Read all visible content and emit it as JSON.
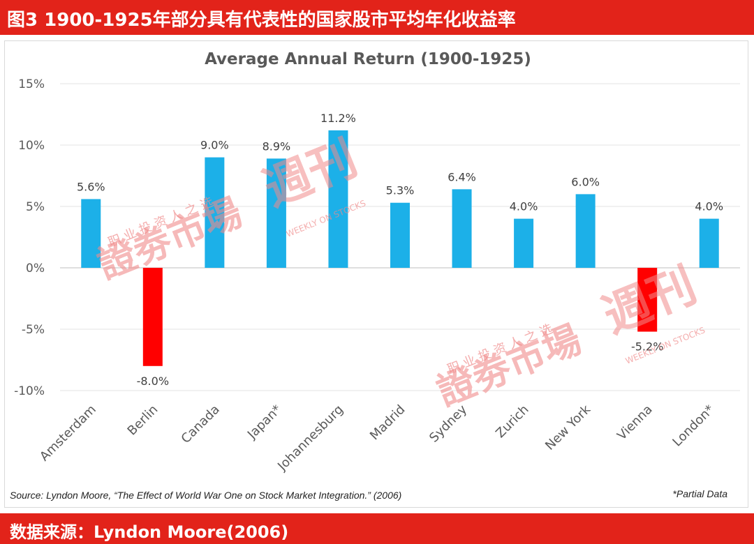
{
  "header": {
    "title": "图3 1900-1925年部分具有代表性的国家股市平均年化收益率"
  },
  "footer": {
    "text": "数据来源：Lyndon Moore(2006)"
  },
  "notes": {
    "source": "Source: Lyndon Moore, “The Effect of World War One on Stock Market Integration.” (2006)",
    "partial": "*Partial Data"
  },
  "watermark": {
    "main": "證劵市場",
    "brand": "週刊",
    "sub": "职 业 投 资 人 之 选",
    "en": "WEEKLY ON STOCKS"
  },
  "colors": {
    "positive": "#1cb0e8",
    "negative": "#ff0000",
    "banner": "#e2231a",
    "watermark": "#f08a8a"
  },
  "chart_data": {
    "type": "bar",
    "title": "Average Annual Return (1900-1925)",
    "categories": [
      "Amsterdam",
      "Berlin",
      "Canada",
      "Japan*",
      "Johannesburg",
      "Madrid",
      "Sydney",
      "Zurich",
      "New York",
      "Vienna",
      "London*"
    ],
    "values": [
      5.6,
      -8.0,
      9.0,
      8.9,
      11.2,
      5.3,
      6.4,
      4.0,
      6.0,
      -5.2,
      4.0
    ],
    "value_labels": [
      "5.6%",
      "-8.0%",
      "9.0%",
      "8.9%",
      "11.2%",
      "5.3%",
      "6.4%",
      "4.0%",
      "6.0%",
      "-5.2%",
      "4.0%"
    ],
    "yticks": [
      15,
      10,
      5,
      0,
      -5,
      -10
    ],
    "ytick_labels": [
      "15%",
      "10%",
      "5%",
      "0%",
      "-5%",
      "-10%"
    ],
    "ylim": [
      -10,
      15
    ],
    "grid": true,
    "xlabel": "",
    "ylabel": ""
  }
}
